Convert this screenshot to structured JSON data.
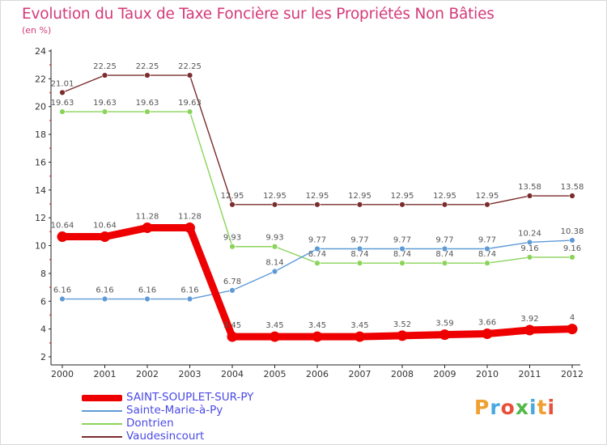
{
  "chart_data": {
    "type": "line",
    "title": "Evolution du Taux de Taxe Foncière sur les Propriétés Non Bâties",
    "ylabel": "(en %)",
    "xlabel": "",
    "x": [
      "2000",
      "2001",
      "2002",
      "2003",
      "2004",
      "2005",
      "2006",
      "2007",
      "2008",
      "2009",
      "2010",
      "2011",
      "2012"
    ],
    "ylim": [
      2,
      24
    ],
    "yticks": [
      2,
      4,
      6,
      8,
      10,
      12,
      14,
      16,
      18,
      20,
      22,
      24
    ],
    "series": [
      {
        "name": "Vaudesincourt",
        "color": "#7b2c2c",
        "values": [
          21.01,
          22.25,
          22.25,
          22.25,
          12.95,
          12.95,
          12.95,
          12.95,
          12.95,
          12.95,
          12.95,
          13.58,
          13.58
        ],
        "labels": [
          "21.01",
          "22.25",
          "22.25",
          "22.25",
          "12.95",
          "12.95",
          "12.95",
          "12.95",
          "12.95",
          "12.95",
          "12.95",
          "13.58",
          "13.58"
        ]
      },
      {
        "name": "Dontrien",
        "color": "#8ad45a",
        "values": [
          19.63,
          19.63,
          19.63,
          19.63,
          9.93,
          9.93,
          8.74,
          8.74,
          8.74,
          8.74,
          8.74,
          9.16,
          9.16
        ],
        "labels": [
          "19.63",
          "19.63",
          "19.63",
          "19.63",
          "9.93",
          "9.93",
          "8.74",
          "8.74",
          "8.74",
          "8.74",
          "8.74",
          "9.16",
          "9.16"
        ]
      },
      {
        "name": "Sainte-Marie-à-Py",
        "color": "#5e9bd6",
        "values": [
          6.16,
          6.16,
          6.16,
          6.16,
          6.78,
          8.14,
          9.77,
          9.77,
          9.77,
          9.77,
          9.77,
          10.24,
          10.38
        ],
        "labels": [
          "6.16",
          "6.16",
          "6.16",
          "6.16",
          "6.78",
          "8.14",
          "9.77",
          "9.77",
          "9.77",
          "9.77",
          "9.77",
          "10.24",
          "10.38"
        ]
      },
      {
        "name": "SAINT-SOUPLET-SUR-PY",
        "color": "#ee0000",
        "values": [
          10.64,
          10.64,
          11.28,
          11.28,
          3.45,
          3.45,
          3.45,
          3.45,
          3.52,
          3.59,
          3.66,
          3.92,
          4
        ],
        "labels": [
          "10.64",
          "10.64",
          "11.28",
          "11.28",
          "3.45",
          "3.45",
          "3.45",
          "3.45",
          "3.52",
          "3.59",
          "3.66",
          "3.92",
          "4"
        ]
      }
    ],
    "legend": [
      {
        "name": "SAINT-SOUPLET-SUR-PY",
        "color": "#ee0000",
        "thick": true
      },
      {
        "name": "Sainte-Marie-à-Py",
        "color": "#5e9bd6",
        "thick": false
      },
      {
        "name": "Dontrien",
        "color": "#8ad45a",
        "thick": false
      },
      {
        "name": "Vaudesincourt",
        "color": "#7b2c2c",
        "thick": false
      }
    ],
    "legend_position": "bottom-left",
    "grid": false
  },
  "brand": {
    "text": "Proxiti",
    "colors": [
      "#f0a030",
      "#4aa8e0",
      "#e8503a",
      "#52b84a",
      "#4aa8e0",
      "#f0a030",
      "#e8503a"
    ]
  }
}
